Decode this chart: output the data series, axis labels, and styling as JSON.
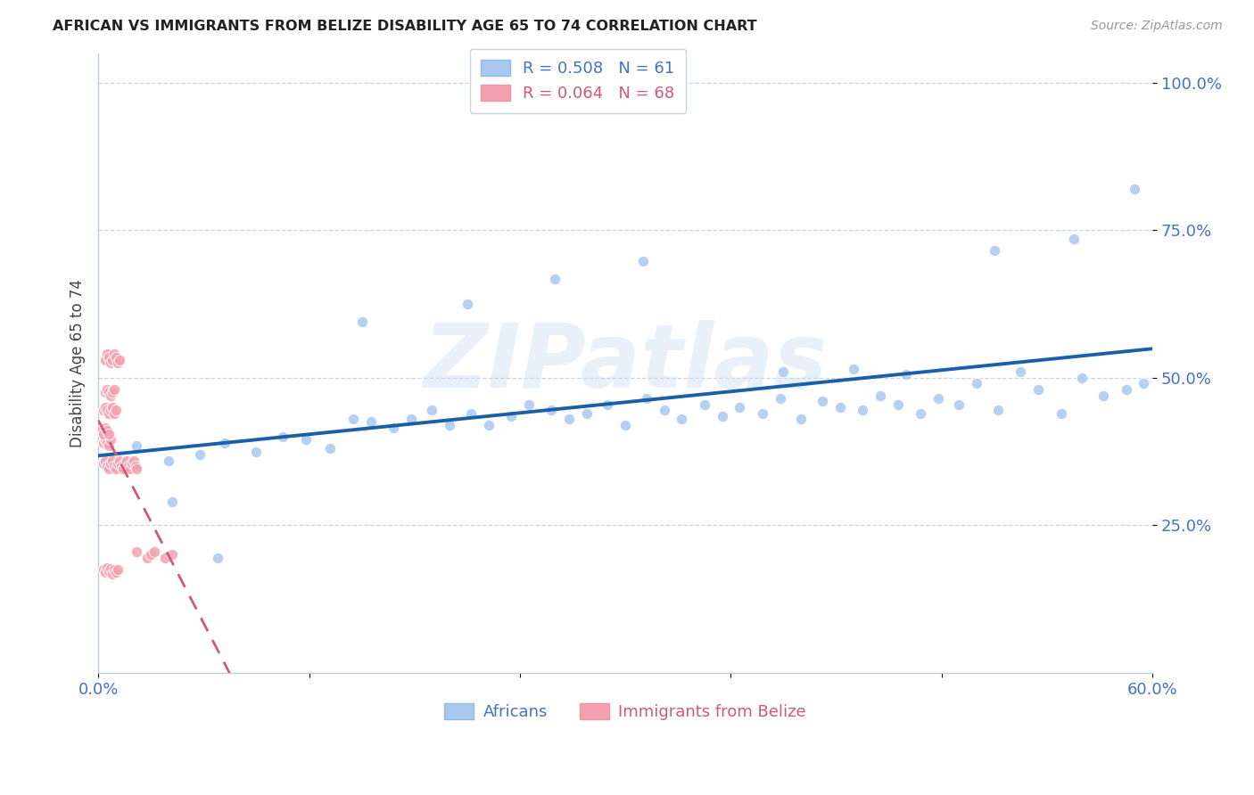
{
  "title": "AFRICAN VS IMMIGRANTS FROM BELIZE DISABILITY AGE 65 TO 74 CORRELATION CHART",
  "source": "Source: ZipAtlas.com",
  "ylabel": "Disability Age 65 to 74",
  "ytick_labels": [
    "25.0%",
    "50.0%",
    "75.0%",
    "100.0%"
  ],
  "ytick_values": [
    0.25,
    0.5,
    0.75,
    1.0
  ],
  "xlim": [
    0.0,
    0.6
  ],
  "ylim": [
    0.0,
    1.05
  ],
  "xtick_positions": [
    0.0,
    0.12,
    0.24,
    0.36,
    0.48,
    0.6
  ],
  "xtick_labels": [
    "0.0%",
    "",
    "",
    "",
    "",
    "60.0%"
  ],
  "legend_r1": "0.508",
  "legend_n1": "61",
  "legend_r2": "0.064",
  "legend_n2": "68",
  "color_african": "#a8c8f0",
  "color_belize": "#f5a0b0",
  "color_line_african": "#1a5fa8",
  "color_line_belize": "#d05878",
  "watermark": "ZIPatlas",
  "africans_x": [
    0.022,
    0.04,
    0.058,
    0.072,
    0.09,
    0.105,
    0.118,
    0.132,
    0.145,
    0.155,
    0.168,
    0.178,
    0.19,
    0.2,
    0.212,
    0.222,
    0.235,
    0.245,
    0.258,
    0.268,
    0.278,
    0.29,
    0.3,
    0.312,
    0.322,
    0.332,
    0.345,
    0.355,
    0.365,
    0.378,
    0.388,
    0.4,
    0.412,
    0.422,
    0.435,
    0.445,
    0.455,
    0.468,
    0.478,
    0.49,
    0.5,
    0.512,
    0.525,
    0.535,
    0.548,
    0.56,
    0.572,
    0.585,
    0.595,
    0.15,
    0.21,
    0.26,
    0.31,
    0.39,
    0.43,
    0.46,
    0.51,
    0.555,
    0.59,
    0.042,
    0.068
  ],
  "africans_y": [
    0.385,
    0.36,
    0.37,
    0.39,
    0.375,
    0.4,
    0.395,
    0.38,
    0.43,
    0.425,
    0.415,
    0.43,
    0.445,
    0.42,
    0.44,
    0.42,
    0.435,
    0.455,
    0.445,
    0.43,
    0.44,
    0.455,
    0.42,
    0.465,
    0.445,
    0.43,
    0.455,
    0.435,
    0.45,
    0.44,
    0.465,
    0.43,
    0.46,
    0.45,
    0.445,
    0.47,
    0.455,
    0.44,
    0.465,
    0.455,
    0.49,
    0.445,
    0.51,
    0.48,
    0.44,
    0.5,
    0.47,
    0.48,
    0.49,
    0.595,
    0.625,
    0.668,
    0.698,
    0.51,
    0.515,
    0.505,
    0.715,
    0.735,
    0.82,
    0.29,
    0.195
  ],
  "belize_x": [
    0.003,
    0.004,
    0.005,
    0.006,
    0.007,
    0.008,
    0.009,
    0.01,
    0.011,
    0.012,
    0.013,
    0.014,
    0.015,
    0.016,
    0.017,
    0.018,
    0.019,
    0.02,
    0.021,
    0.022,
    0.004,
    0.005,
    0.006,
    0.007,
    0.008,
    0.009,
    0.01,
    0.011,
    0.012,
    0.003,
    0.004,
    0.005,
    0.006,
    0.007,
    0.008,
    0.009,
    0.01,
    0.004,
    0.005,
    0.006,
    0.007,
    0.008,
    0.009,
    0.003,
    0.004,
    0.005,
    0.006,
    0.007,
    0.002,
    0.003,
    0.004,
    0.005,
    0.006,
    0.022,
    0.028,
    0.03,
    0.032,
    0.038,
    0.042,
    0.003,
    0.004,
    0.005,
    0.006,
    0.007,
    0.008,
    0.009,
    0.01,
    0.011
  ],
  "belize_y": [
    0.355,
    0.36,
    0.35,
    0.345,
    0.355,
    0.36,
    0.35,
    0.345,
    0.355,
    0.36,
    0.35,
    0.345,
    0.355,
    0.36,
    0.35,
    0.345,
    0.355,
    0.36,
    0.35,
    0.345,
    0.53,
    0.54,
    0.535,
    0.525,
    0.53,
    0.54,
    0.535,
    0.525,
    0.53,
    0.445,
    0.45,
    0.445,
    0.44,
    0.445,
    0.45,
    0.44,
    0.445,
    0.475,
    0.48,
    0.475,
    0.47,
    0.475,
    0.48,
    0.39,
    0.395,
    0.39,
    0.385,
    0.395,
    0.41,
    0.405,
    0.415,
    0.41,
    0.405,
    0.205,
    0.195,
    0.2,
    0.205,
    0.195,
    0.2,
    0.175,
    0.17,
    0.178,
    0.172,
    0.176,
    0.168,
    0.175,
    0.17,
    0.175
  ]
}
